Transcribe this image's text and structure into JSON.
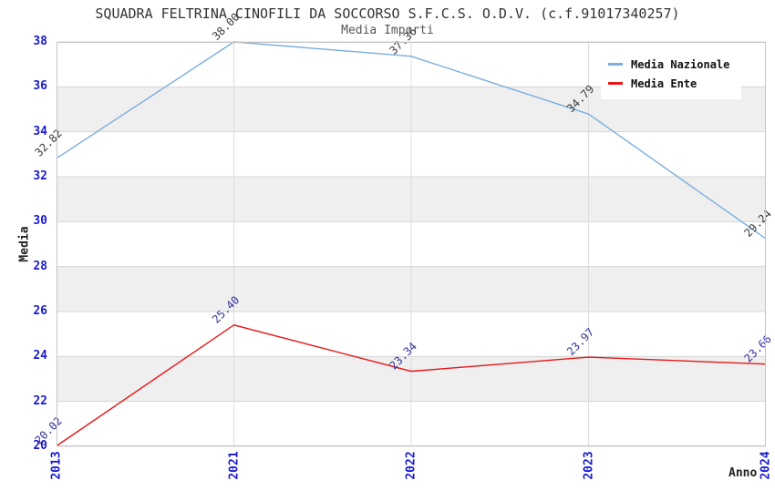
{
  "chart_data": {
    "type": "line",
    "title": "SQUADRA FELTRINA CINOFILI DA SOCCORSO S.F.C.S. O.D.V. (c.f.91017340257)",
    "subtitle": "Media Importi",
    "xlabel": "Anno",
    "ylabel": "Media",
    "categories": [
      "2013",
      "2021",
      "2022",
      "2023",
      "2024"
    ],
    "series": [
      {
        "name": "Media Nazionale",
        "color": "#7aaedd",
        "label_color": "#3a3a3a",
        "values": [
          32.82,
          38.0,
          37.36,
          34.79,
          29.24
        ]
      },
      {
        "name": "Media Ente",
        "color": "#e81717",
        "label_color": "#333399",
        "values": [
          20.02,
          25.4,
          23.34,
          23.97,
          23.66
        ]
      }
    ],
    "ylim": [
      20,
      38
    ],
    "yticks": [
      20,
      22,
      24,
      26,
      28,
      30,
      32,
      34,
      36,
      38
    ],
    "value_decimals": 2,
    "grid": true,
    "legend_position": "top-right",
    "axis_tick_color": "#1a1acc",
    "band_colors": [
      "#ffffff",
      "#efefef"
    ],
    "grid_color": "#d6d6d6",
    "vgrid_color": "#dcdcdc",
    "border_color": "#c4c4c4"
  }
}
